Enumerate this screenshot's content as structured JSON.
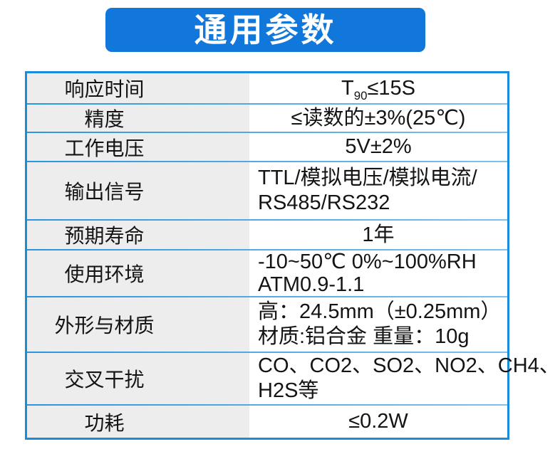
{
  "header": {
    "title": "通用参数",
    "bg_color": "#1177db",
    "text_color": "#ffffff"
  },
  "table": {
    "border_color": "#1b8cd8",
    "divider_color": "#2a95dd",
    "label_bg": "#ededed",
    "rows": [
      {
        "label": "响应时间",
        "value": {
          "prefix": "T",
          "sub": "90",
          "suffix": "≤15S"
        }
      },
      {
        "label": "精度",
        "value": {
          "lines": [
            "≤读数的±3%(25℃)"
          ]
        }
      },
      {
        "label": "工作电压",
        "value": {
          "lines": [
            "5V±2%"
          ]
        }
      },
      {
        "label": "输出信号",
        "value": {
          "lines": [
            "TTL/模拟电压/模拟电流/",
            "RS485/RS232"
          ]
        }
      },
      {
        "label": "预期寿命",
        "value": {
          "lines": [
            "1年"
          ]
        }
      },
      {
        "label": "使用环境",
        "value": {
          "lines": [
            "-10~50℃ 0%~100%RH",
            "ATM0.9-1.1"
          ]
        }
      },
      {
        "label": "外形与材质",
        "value": {
          "lines": [
            "高：24.5mm（±0.25mm）",
            "材质:铝合金 重量：10g"
          ]
        }
      },
      {
        "label": "交叉干扰",
        "value": {
          "lines": [
            "CO、CO2、SO2、NO2、CH4、",
            "H2S等"
          ]
        }
      },
      {
        "label": "功耗",
        "value": {
          "lines": [
            "≤0.2W"
          ]
        }
      }
    ]
  }
}
